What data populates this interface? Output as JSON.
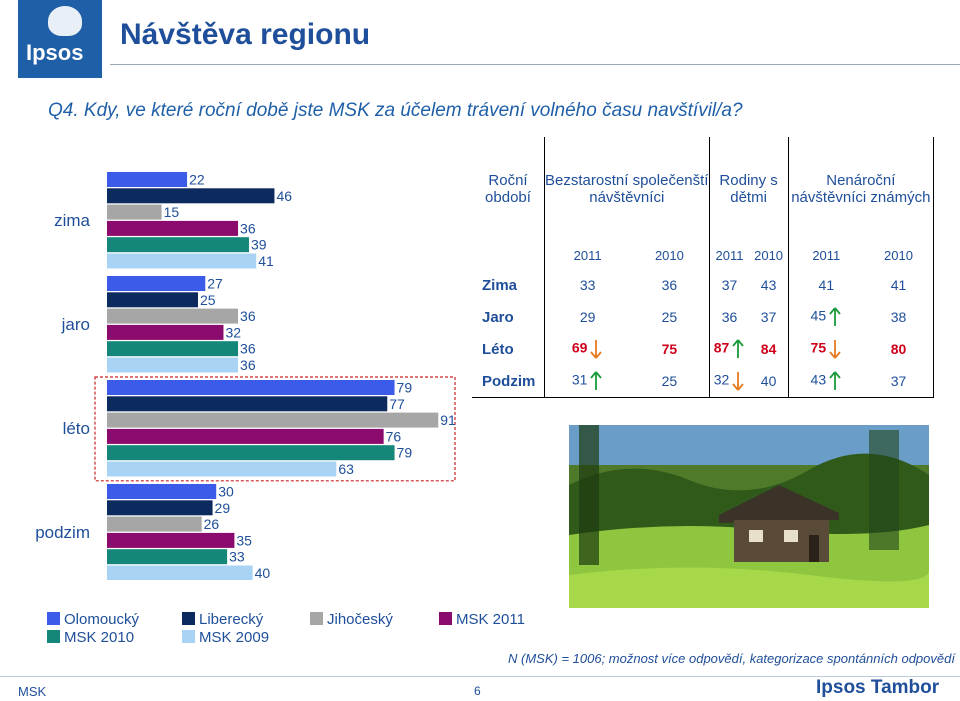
{
  "header": {
    "logo_text": "Ipsos",
    "title": "Návštěva regionu",
    "question": "Q4. Kdy, ve které roční době jste MSK za účelem trávení volného času navštívil/a?"
  },
  "colors": {
    "Olomoucký": "#3b5be8",
    "Liberecký": "#0d2a5e",
    "Jihočeský": "#a6a6a6",
    "MSK 2011": "#8b0a6e",
    "MSK 2010": "#14867a",
    "MSK 2009": "#a9d3f5",
    "highlight": "#d0001a",
    "up_arrow": "#1a9b3a",
    "down_arrow": "#e57a1e"
  },
  "chart_data": {
    "type": "bar",
    "orientation": "horizontal",
    "categories": [
      "zima",
      "jaro",
      "léto",
      "podzim"
    ],
    "series": [
      {
        "name": "Olomoucký",
        "values": [
          22,
          27,
          79,
          30
        ]
      },
      {
        "name": "Liberecký",
        "values": [
          46,
          25,
          77,
          29
        ]
      },
      {
        "name": "Jihočeský",
        "values": [
          15,
          36,
          91,
          26
        ]
      },
      {
        "name": "MSK 2011",
        "values": [
          36,
          32,
          76,
          35
        ]
      },
      {
        "name": "MSK 2010",
        "values": [
          39,
          36,
          79,
          33
        ]
      },
      {
        "name": "MSK 2009",
        "values": [
          41,
          36,
          63,
          40
        ]
      }
    ],
    "xlim": [
      0,
      100
    ],
    "grid": false,
    "legend": "bottom",
    "highlighted_category": "léto"
  },
  "table": {
    "col_header_period": "Roční období",
    "groups": [
      "Bezstarostní společenští návštěvníci",
      "Rodiny s dětmi",
      "Nenároční návštěvníci známých"
    ],
    "years": [
      "2011",
      "2010",
      "2011",
      "2010",
      "2011",
      "2010"
    ],
    "rows": [
      {
        "label": "Zima",
        "values": [
          "33",
          "36",
          "37",
          "43",
          "41",
          "41"
        ],
        "arrows": [
          "",
          "",
          "",
          "",
          "",
          ""
        ],
        "highlight": false
      },
      {
        "label": "Jaro",
        "values": [
          "29",
          "25",
          "36",
          "37",
          "45",
          "38"
        ],
        "arrows": [
          "",
          "",
          "",
          "",
          "up",
          ""
        ],
        "highlight": false
      },
      {
        "label": "Léto",
        "values": [
          "69",
          "75",
          "87",
          "84",
          "75",
          "80"
        ],
        "arrows": [
          "down",
          "",
          "up",
          "",
          "down",
          ""
        ],
        "highlight": true
      },
      {
        "label": "Podzim",
        "values": [
          "31",
          "25",
          "32",
          "40",
          "43",
          "37"
        ],
        "arrows": [
          "up",
          "",
          "down",
          "",
          "up",
          ""
        ],
        "highlight": false
      }
    ]
  },
  "note": "N (MSK) = 1006; možnost více odpovědí, kategorizace spontánních odpovědí",
  "footer": {
    "left": "MSK",
    "page": "6",
    "brand": "Ipsos Tambor"
  }
}
